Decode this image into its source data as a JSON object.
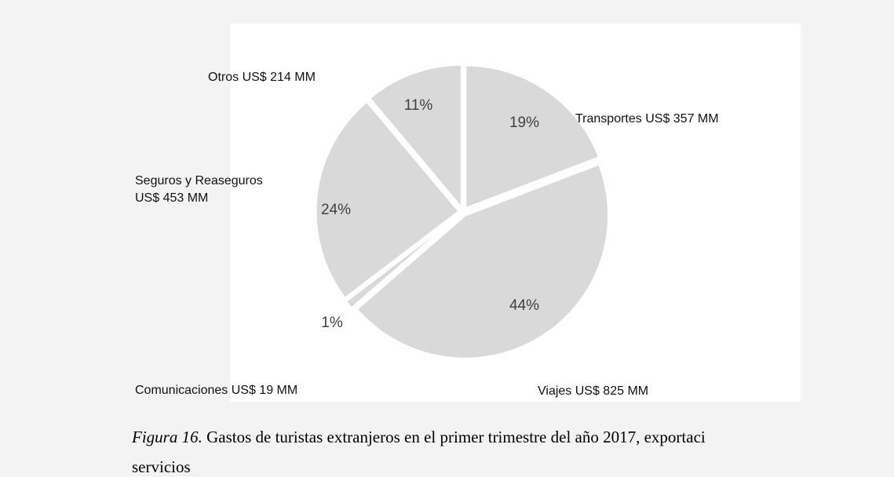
{
  "chart_data": {
    "type": "pie",
    "categories": [
      "Transportes US$ 357 MM",
      "Viajes US$ 825 MM",
      "Comunicaciones US$ 19 MM",
      "Seguros y Reaseguros US$ 453 MM",
      "Otros US$ 214 MM"
    ],
    "values": [
      19,
      44,
      1,
      24,
      11
    ],
    "value_labels": [
      "19%",
      "44%",
      "1%",
      "24%",
      "11%"
    ],
    "color": "#d9d9d9"
  },
  "caption": {
    "label": "Figura 16.",
    "text": "Gastos de turistas extranjeros en el primer trimestre del año 2017, exportaci",
    "text2": "servicios"
  }
}
